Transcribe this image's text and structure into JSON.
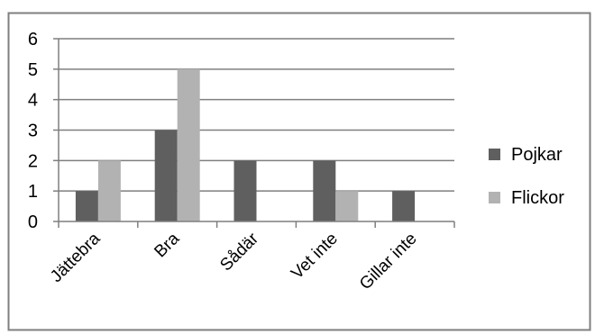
{
  "chart_data": {
    "type": "bar",
    "categories": [
      "Jättebra",
      "Bra",
      "Sådär",
      "Vet inte",
      "Gillar inte"
    ],
    "series": [
      {
        "name": "Pojkar",
        "values": [
          1,
          3,
          2,
          2,
          1
        ],
        "color": "#5f5f5f"
      },
      {
        "name": "Flickor",
        "values": [
          2,
          5,
          0,
          1,
          0
        ],
        "color": "#b2b2b2"
      }
    ],
    "yticks": [
      0,
      1,
      2,
      3,
      4,
      5,
      6
    ],
    "ylim": [
      0,
      6
    ],
    "grid": true,
    "legend_position": "right",
    "colors": {
      "border": "#7f7f7f",
      "grid": "#7f7f7f",
      "axis": "#7f7f7f",
      "text": "#000000"
    }
  }
}
